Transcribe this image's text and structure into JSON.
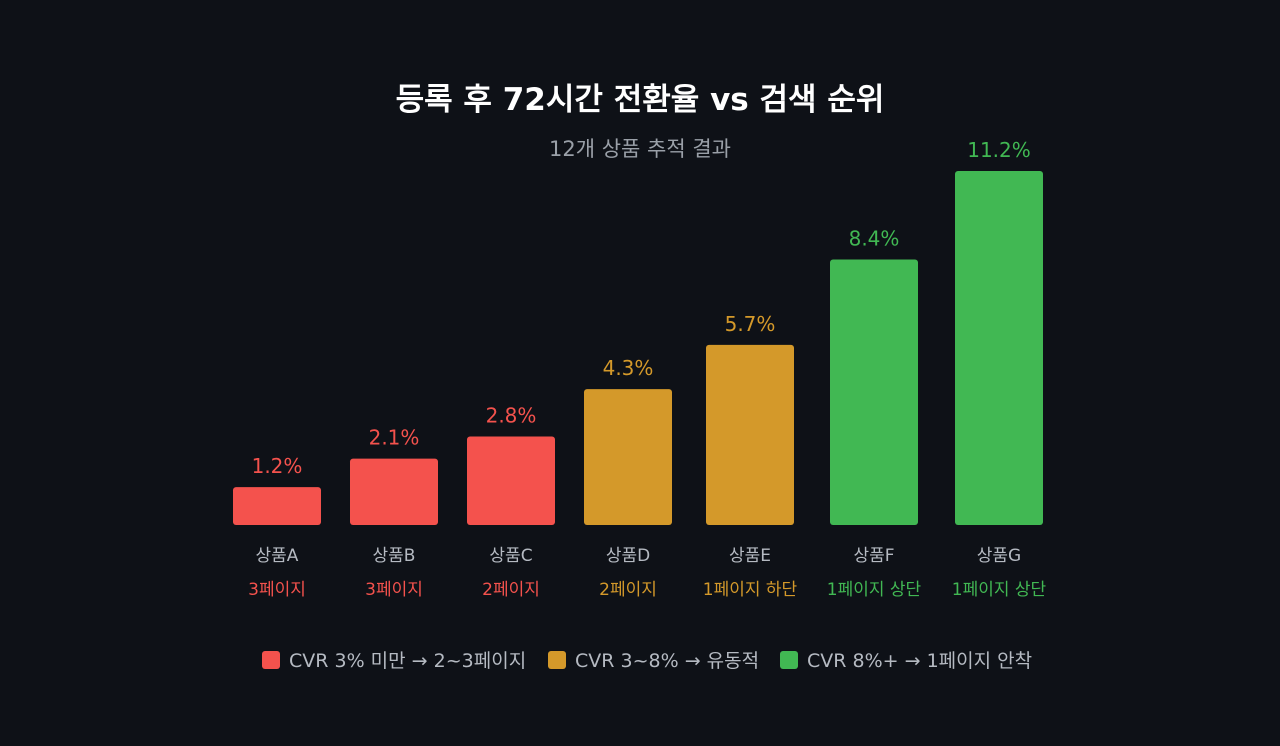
{
  "chart_data": {
    "type": "bar",
    "title": "등록 후 72시간 전환율 vs 검색 순위",
    "subtitle": "12개 상품 추적 결과",
    "categories": [
      "상품A",
      "상품B",
      "상품C",
      "상품D",
      "상품E",
      "상품F",
      "상품G"
    ],
    "values": [
      1.2,
      2.1,
      2.8,
      4.3,
      5.7,
      8.4,
      11.2
    ],
    "value_labels": [
      "1.2%",
      "2.1%",
      "2.8%",
      "4.3%",
      "5.7%",
      "8.4%",
      "11.2%"
    ],
    "rank_labels": [
      "3페이지",
      "3페이지",
      "2페이지",
      "2페이지",
      "1페이지 하단",
      "1페이지 상단",
      "1페이지 상단"
    ],
    "groups": [
      "low",
      "low",
      "low",
      "mid",
      "mid",
      "high",
      "high"
    ],
    "ylim": [
      0,
      11.2
    ],
    "xlabel": "",
    "ylabel": "",
    "grid": false,
    "legend_position": "bottom-center",
    "legend": [
      {
        "key": "low",
        "label": "CVR 3% 미만 → 2~3페이지",
        "color": "#f4524d"
      },
      {
        "key": "mid",
        "label": "CVR 3~8% → 유동적",
        "color": "#d4992a"
      },
      {
        "key": "high",
        "label": "CVR 8%+ → 1페이지 안착",
        "color": "#41b853"
      }
    ]
  },
  "colors": {
    "background": "#0e1117",
    "low": "#f4524d",
    "mid": "#d4992a",
    "high": "#41b853",
    "title": "#ffffff",
    "muted": "#9aa0a8"
  }
}
